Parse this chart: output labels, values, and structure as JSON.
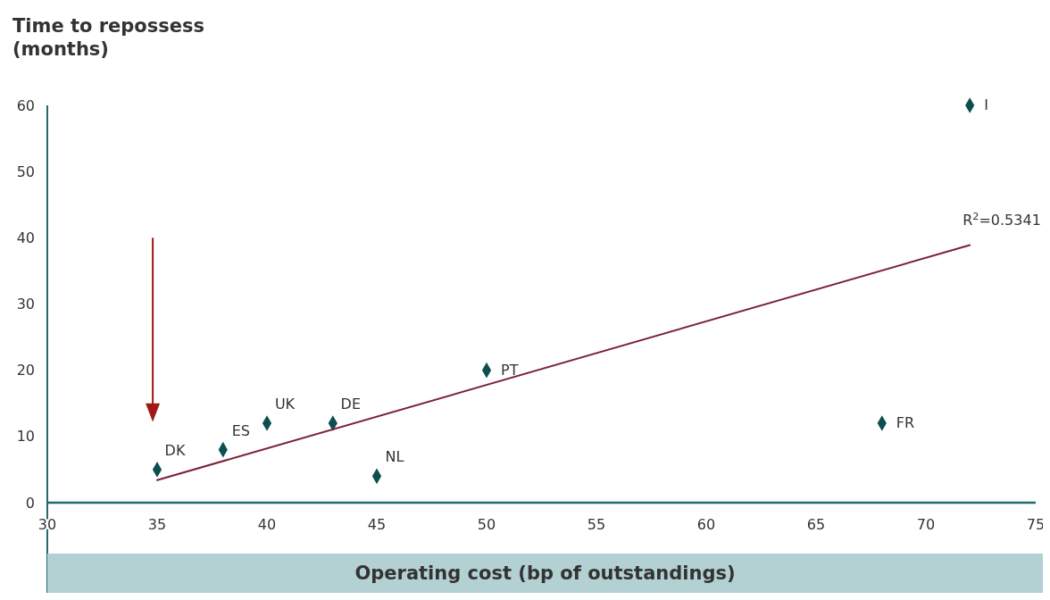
{
  "chart_data": {
    "type": "scatter",
    "ylabel": "Time to repossess (months)",
    "xlabel": "Operating cost (bp of outstandings)",
    "series": [
      {
        "color": "#0d4f4f",
        "x": [
          35,
          38,
          40,
          43,
          45,
          50,
          68,
          72
        ],
        "values": [
          5,
          8,
          12,
          12,
          4,
          20,
          12,
          60
        ],
        "marker": "diamond"
      },
      {
        "type": "line",
        "color": "#7b1f3c",
        "x": [
          35,
          72
        ],
        "values": [
          3.4,
          38.9
        ],
        "line_style": "solid",
        "marker": "none"
      }
    ],
    "annotations": [
      {
        "text": "DK",
        "x": 35,
        "y": 5
      },
      {
        "text": "ES",
        "x": 38,
        "y": 8
      },
      {
        "text": "UK",
        "x": 40,
        "y": 12
      },
      {
        "text": "DE",
        "x": 43,
        "y": 12
      },
      {
        "text": "NL",
        "x": 45,
        "y": 4
      },
      {
        "text": "PT",
        "x": 50,
        "y": 20
      },
      {
        "text": "FR",
        "x": 68,
        "y": 12
      },
      {
        "text": "I",
        "x": 72,
        "y": 60
      },
      {
        "text": "R$^{2}$=0.5341",
        "x": 72,
        "y": 38.9
      }
    ],
    "xlim": [
      30,
      75
    ],
    "xticks": [
      30,
      35,
      40,
      45,
      50,
      55,
      60,
      65,
      70,
      75
    ],
    "ylim": [
      0,
      60
    ],
    "yticks": [
      0,
      10,
      20,
      30,
      40,
      50,
      60
    ],
    "grid": false
  }
}
